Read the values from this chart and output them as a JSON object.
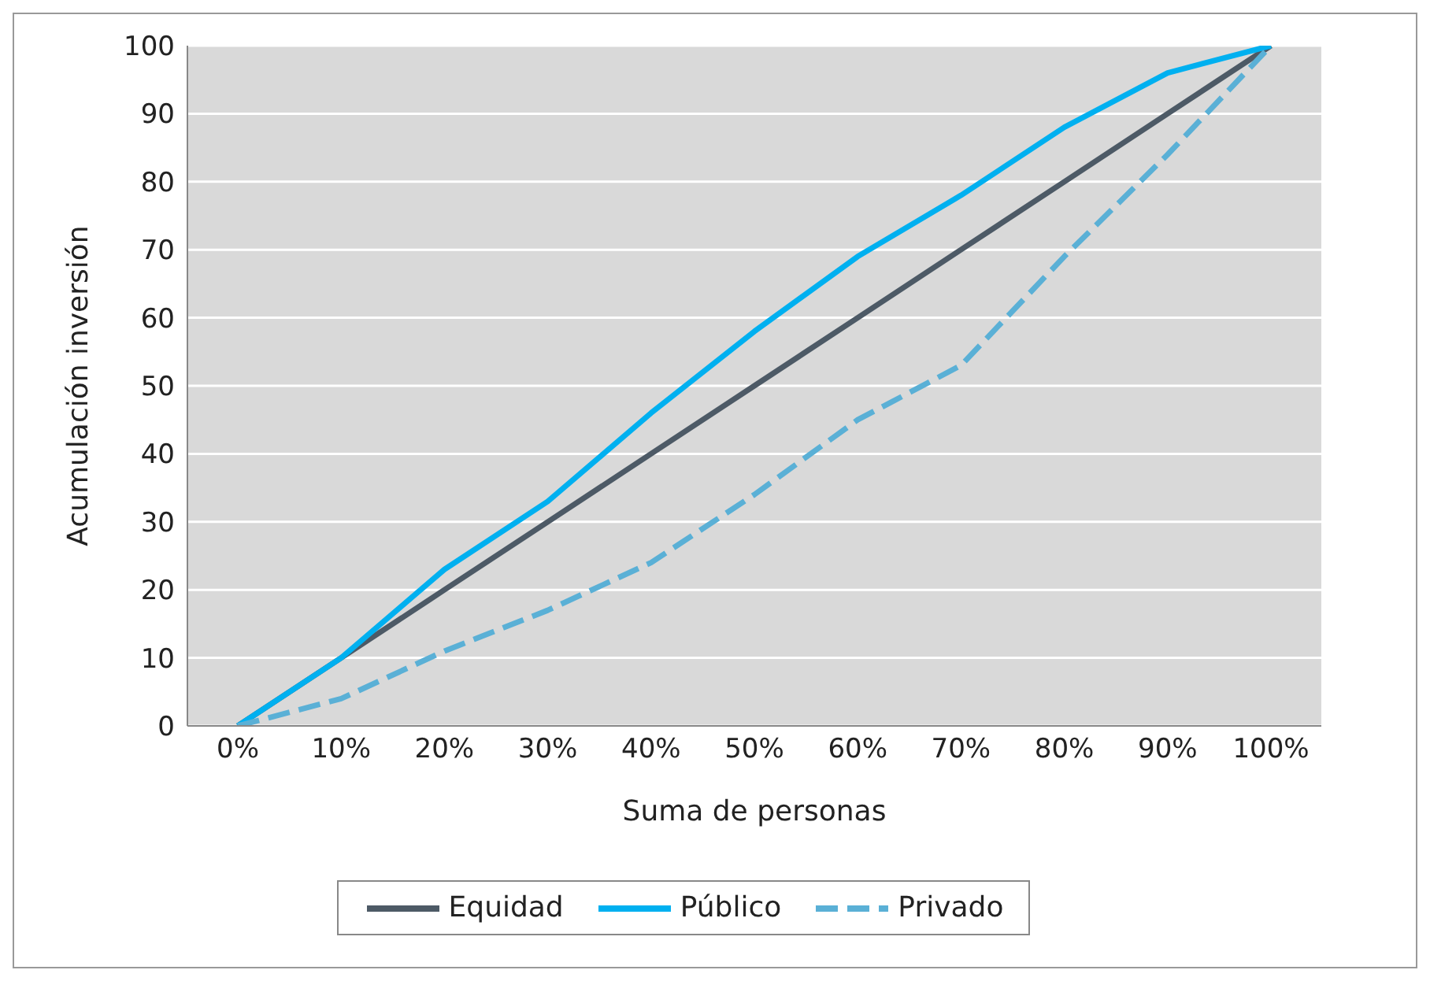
{
  "chart_data": {
    "type": "line",
    "xlabel": "Suma de personas",
    "ylabel": "Acumulación inversión",
    "categories": [
      "0%",
      "10%",
      "20%",
      "30%",
      "40%",
      "50%",
      "60%",
      "70%",
      "80%",
      "90%",
      "100%"
    ],
    "series": [
      {
        "name": "Equidad",
        "color": "#4d5a66",
        "values": [
          0,
          10,
          20,
          30,
          40,
          50,
          60,
          70,
          80,
          90,
          100
        ],
        "line_style": "solid"
      },
      {
        "name": "Público",
        "color": "#00b0f0",
        "values": [
          0,
          10,
          23,
          33,
          46,
          58,
          69,
          78,
          88,
          96,
          100
        ],
        "line_style": "solid"
      },
      {
        "name": "Privado",
        "color": "#5ab0d6",
        "values": [
          0,
          4,
          11,
          17,
          24,
          34,
          45,
          53,
          69,
          84,
          100
        ],
        "line_style": "dashed"
      }
    ],
    "ylim": [
      0,
      100
    ],
    "yticks": [
      0,
      10,
      20,
      30,
      40,
      50,
      60,
      70,
      80,
      90,
      100
    ],
    "grid": "y",
    "legend": "bottom",
    "marker": "none"
  }
}
